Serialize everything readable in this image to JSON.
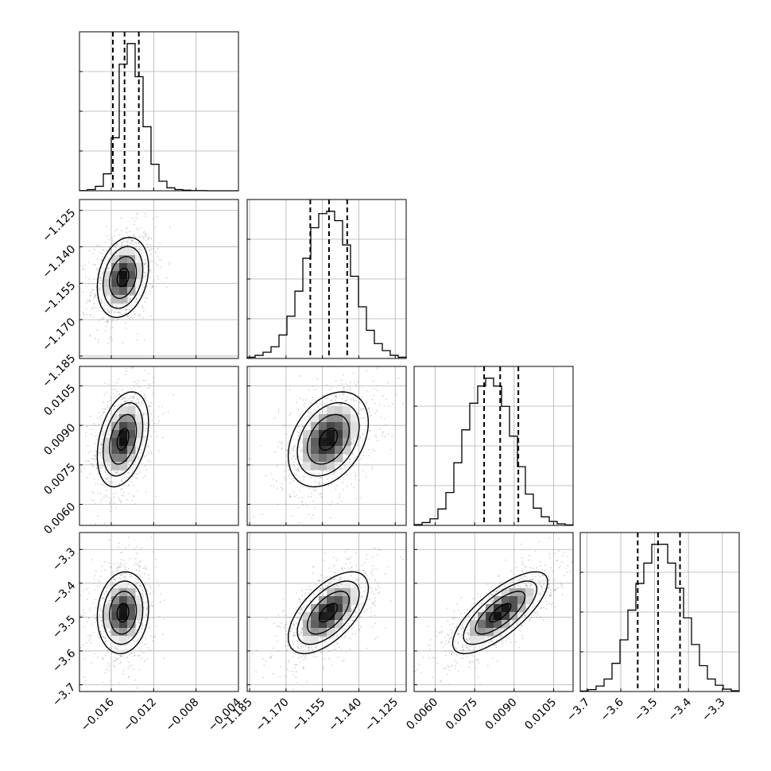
{
  "chart_data": {
    "type": "corner",
    "grid": true,
    "parameters": 4,
    "colors": {
      "line": "#000000",
      "grid": "#b0b0b0",
      "points": "#808080",
      "density_dark": "#000000",
      "density_light": "#ffffff"
    },
    "ranges": [
      [
        -0.019,
        -0.004
      ],
      [
        -1.186,
        -1.1205
      ],
      [
        0.0052,
        0.01124
      ],
      [
        -3.72,
        -3.25
      ]
    ],
    "tick_labels": [
      [
        "-0.016",
        "-0.012",
        "-0.008",
        "-0.004"
      ],
      [
        "-1.185",
        "-1.170",
        "-1.155",
        "-1.140",
        "-1.125"
      ],
      [
        "0.0060",
        "0.0075",
        "0.0090",
        "0.0105"
      ],
      [
        "-3.7",
        "-3.6",
        "-3.5",
        "-3.4",
        "-3.3"
      ]
    ],
    "tick_values": [
      [
        -0.016,
        -0.012,
        -0.008,
        -0.004
      ],
      [
        -1.185,
        -1.17,
        -1.155,
        -1.14,
        -1.125
      ],
      [
        0.006,
        0.0075,
        0.009,
        0.0105
      ],
      [
        -3.7,
        -3.6,
        -3.5,
        -3.4,
        -3.3
      ]
    ],
    "quantiles": [
      [
        -0.01585,
        -0.01475,
        -0.0134
      ],
      [
        -1.16,
        -1.1523,
        -1.1448
      ],
      [
        0.00786,
        0.00847,
        0.00916
      ],
      [
        -3.55,
        -3.49,
        -3.425
      ]
    ],
    "histograms": [
      {
        "bins": [
          -0.019,
          -0.004
        ],
        "counts": [
          1,
          8,
          30,
          115,
          360,
          860,
          1000,
          775,
          435,
          180,
          65,
          20,
          8,
          4,
          1,
          1,
          0,
          0,
          0,
          0
        ]
      },
      {
        "bins": [
          -1.186,
          -1.1205
        ],
        "counts": [
          8,
          20,
          40,
          75,
          150,
          270,
          430,
          640,
          835,
          925,
          940,
          880,
          725,
          525,
          330,
          180,
          95,
          50,
          20,
          8
        ]
      },
      {
        "bins": [
          0.0052,
          0.01124
        ],
        "counts": [
          5,
          18,
          42,
          105,
          210,
          400,
          610,
          780,
          890,
          940,
          890,
          760,
          570,
          375,
          200,
          110,
          55,
          25,
          10,
          3
        ]
      },
      {
        "bins": [
          -3.72,
          -3.25
        ],
        "counts": [
          3,
          12,
          35,
          80,
          180,
          330,
          520,
          690,
          820,
          940,
          940,
          820,
          660,
          470,
          300,
          165,
          80,
          40,
          15,
          5
        ]
      }
    ],
    "means": [
      -0.0149,
      -1.1526,
      0.00847,
      -3.487
    ],
    "stds": [
      0.0011,
      0.0075,
      0.00082,
      0.055
    ],
    "correlations": {
      "1-0": 0.25,
      "2-0": 0.35,
      "2-1": 0.35,
      "3-0": 0.1,
      "3-1": 0.6,
      "3-2": 0.75
    }
  }
}
